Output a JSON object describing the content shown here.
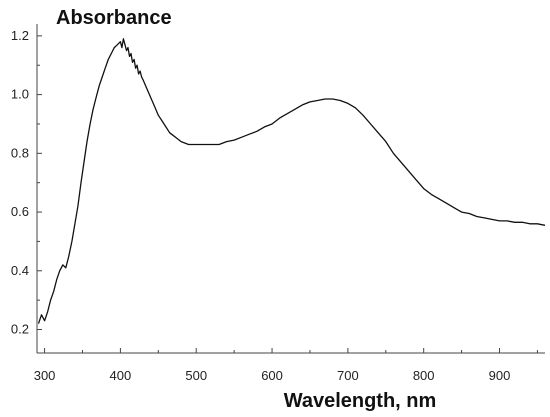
{
  "chart_data": {
    "type": "line",
    "title": "",
    "xlabel": "Wavelength, nm",
    "ylabel": "Absorbance",
    "xlim": [
      290,
      960
    ],
    "ylim": [
      0.12,
      1.22
    ],
    "xticks": [
      300,
      400,
      500,
      600,
      700,
      800,
      900
    ],
    "yticks": [
      0.2,
      0.4,
      0.6,
      0.8,
      1.0,
      1.2
    ],
    "ytick_labels": [
      "0.2",
      "0.4",
      "0.6",
      "0.8",
      "1.0",
      "1.2"
    ],
    "grid": false,
    "line_color": "#111111",
    "series": [
      {
        "x": [
          292,
          296,
          300,
          304,
          308,
          312,
          316,
          320,
          324,
          328,
          332,
          336,
          340,
          344,
          348,
          352,
          356,
          360,
          364,
          368,
          372,
          376,
          380,
          384,
          388,
          392,
          396,
          400,
          402,
          404,
          406,
          408,
          410,
          412,
          414,
          416,
          418,
          420,
          422,
          424,
          426,
          428,
          430,
          435,
          440,
          445,
          450,
          455,
          460,
          465,
          470,
          475,
          480,
          490,
          500,
          510,
          520,
          530,
          540,
          550,
          560,
          570,
          580,
          590,
          600,
          610,
          620,
          630,
          640,
          650,
          660,
          670,
          680,
          690,
          700,
          710,
          720,
          730,
          740,
          750,
          760,
          770,
          780,
          790,
          800,
          810,
          820,
          830,
          840,
          850,
          860,
          870,
          880,
          890,
          900,
          910,
          920,
          930,
          940,
          950,
          960
        ],
        "values": [
          0.22,
          0.25,
          0.23,
          0.26,
          0.3,
          0.33,
          0.37,
          0.4,
          0.42,
          0.41,
          0.45,
          0.5,
          0.56,
          0.62,
          0.7,
          0.77,
          0.84,
          0.9,
          0.95,
          0.99,
          1.03,
          1.06,
          1.09,
          1.12,
          1.14,
          1.16,
          1.17,
          1.18,
          1.16,
          1.19,
          1.17,
          1.15,
          1.16,
          1.13,
          1.14,
          1.11,
          1.12,
          1.09,
          1.1,
          1.07,
          1.08,
          1.06,
          1.05,
          1.02,
          0.99,
          0.96,
          0.93,
          0.91,
          0.89,
          0.87,
          0.86,
          0.85,
          0.84,
          0.83,
          0.83,
          0.83,
          0.83,
          0.83,
          0.84,
          0.845,
          0.855,
          0.865,
          0.875,
          0.89,
          0.9,
          0.92,
          0.935,
          0.95,
          0.965,
          0.975,
          0.98,
          0.985,
          0.985,
          0.98,
          0.97,
          0.955,
          0.93,
          0.9,
          0.87,
          0.84,
          0.8,
          0.77,
          0.74,
          0.71,
          0.68,
          0.66,
          0.645,
          0.63,
          0.615,
          0.6,
          0.595,
          0.585,
          0.58,
          0.575,
          0.57,
          0.57,
          0.565,
          0.565,
          0.56,
          0.56,
          0.555
        ]
      }
    ]
  }
}
